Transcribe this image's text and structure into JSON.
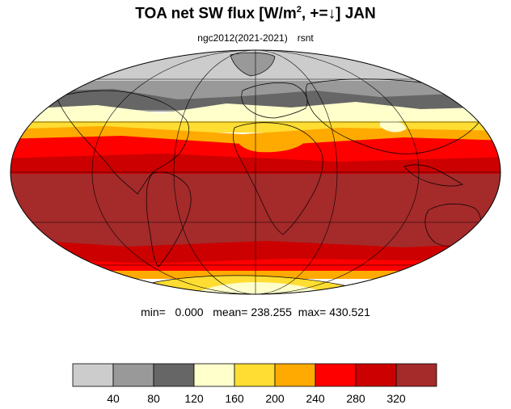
{
  "title": {
    "prefix": "TOA net SW flux [W/m",
    "sup": "2",
    "suffix": ", +=↓]  JAN"
  },
  "subtitle": {
    "run": "ngc2012(2021-2021)",
    "variable": "rsnt"
  },
  "stats": {
    "min_label": "min=",
    "min_value": "0.000",
    "mean_label": "mean=",
    "mean_value": "238.255",
    "max_label": "max=",
    "max_value": "430.521"
  },
  "colorbar": {
    "colors": [
      "#cccccc",
      "#999999",
      "#666666",
      "#ffffcc",
      "#ffdd33",
      "#ffaa00",
      "#ff0000",
      "#cc0000",
      "#a52a2a"
    ],
    "tick_labels": [
      "40",
      "80",
      "120",
      "160",
      "200",
      "240",
      "280",
      "320"
    ]
  },
  "colors": {
    "land_outline": "#000000",
    "grid": "#000000"
  }
}
